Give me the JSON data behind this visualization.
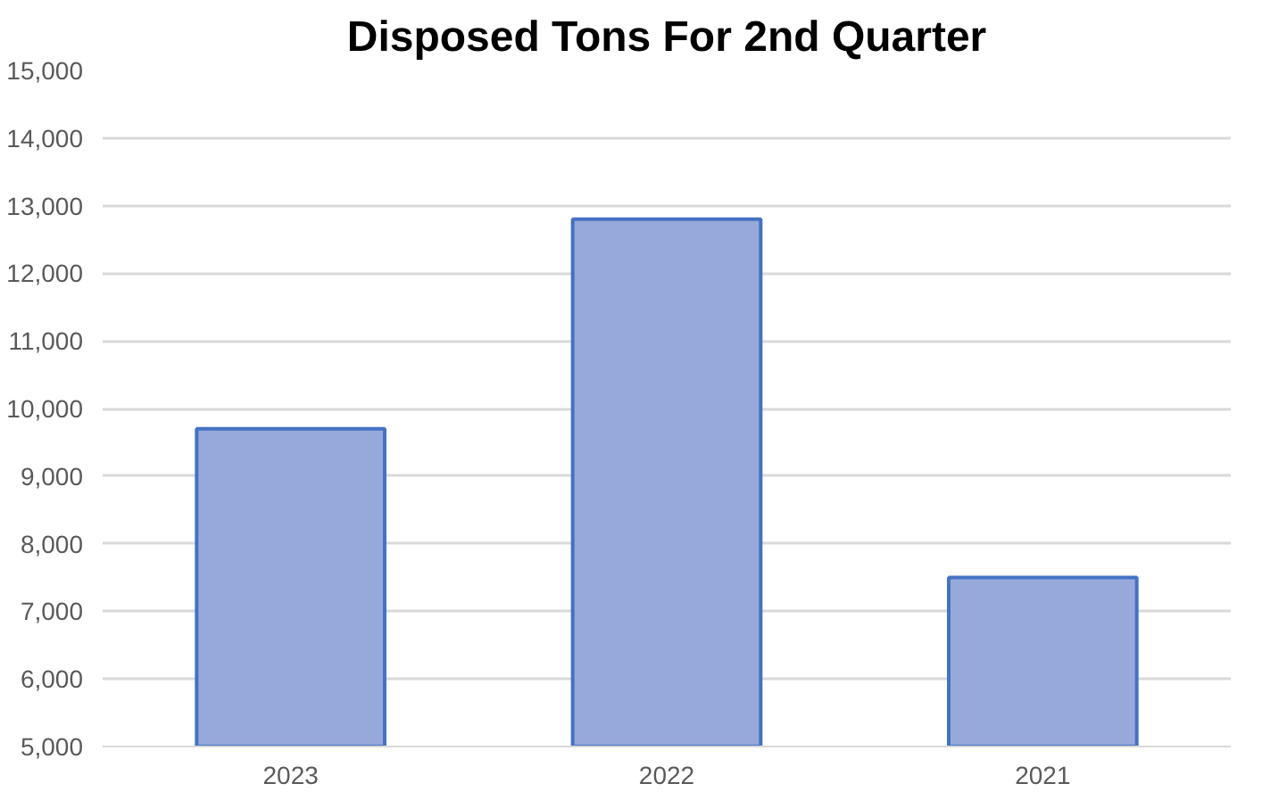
{
  "chart_data": {
    "type": "bar",
    "title": "Disposed Tons For 2nd Quarter",
    "categories": [
      "2023",
      "2022",
      "2021"
    ],
    "values": [
      9700,
      12800,
      7500
    ],
    "color": "#97a9da",
    "ylim": [
      5000,
      15000
    ],
    "yticks": [
      {
        "value": 5000,
        "label": "5,000"
      },
      {
        "value": 6000,
        "label": "6,000"
      },
      {
        "value": 7000,
        "label": "7,000"
      },
      {
        "value": 8000,
        "label": "8,000"
      },
      {
        "value": 9000,
        "label": "9,000"
      },
      {
        "value": 10000,
        "label": "10,000"
      },
      {
        "value": 11000,
        "label": "11,000"
      },
      {
        "value": 12000,
        "label": "12,000"
      },
      {
        "value": 13000,
        "label": "13,000"
      },
      {
        "value": 14000,
        "label": "14,000"
      },
      {
        "value": 15000,
        "label": "15,000"
      }
    ],
    "grid": "y"
  }
}
